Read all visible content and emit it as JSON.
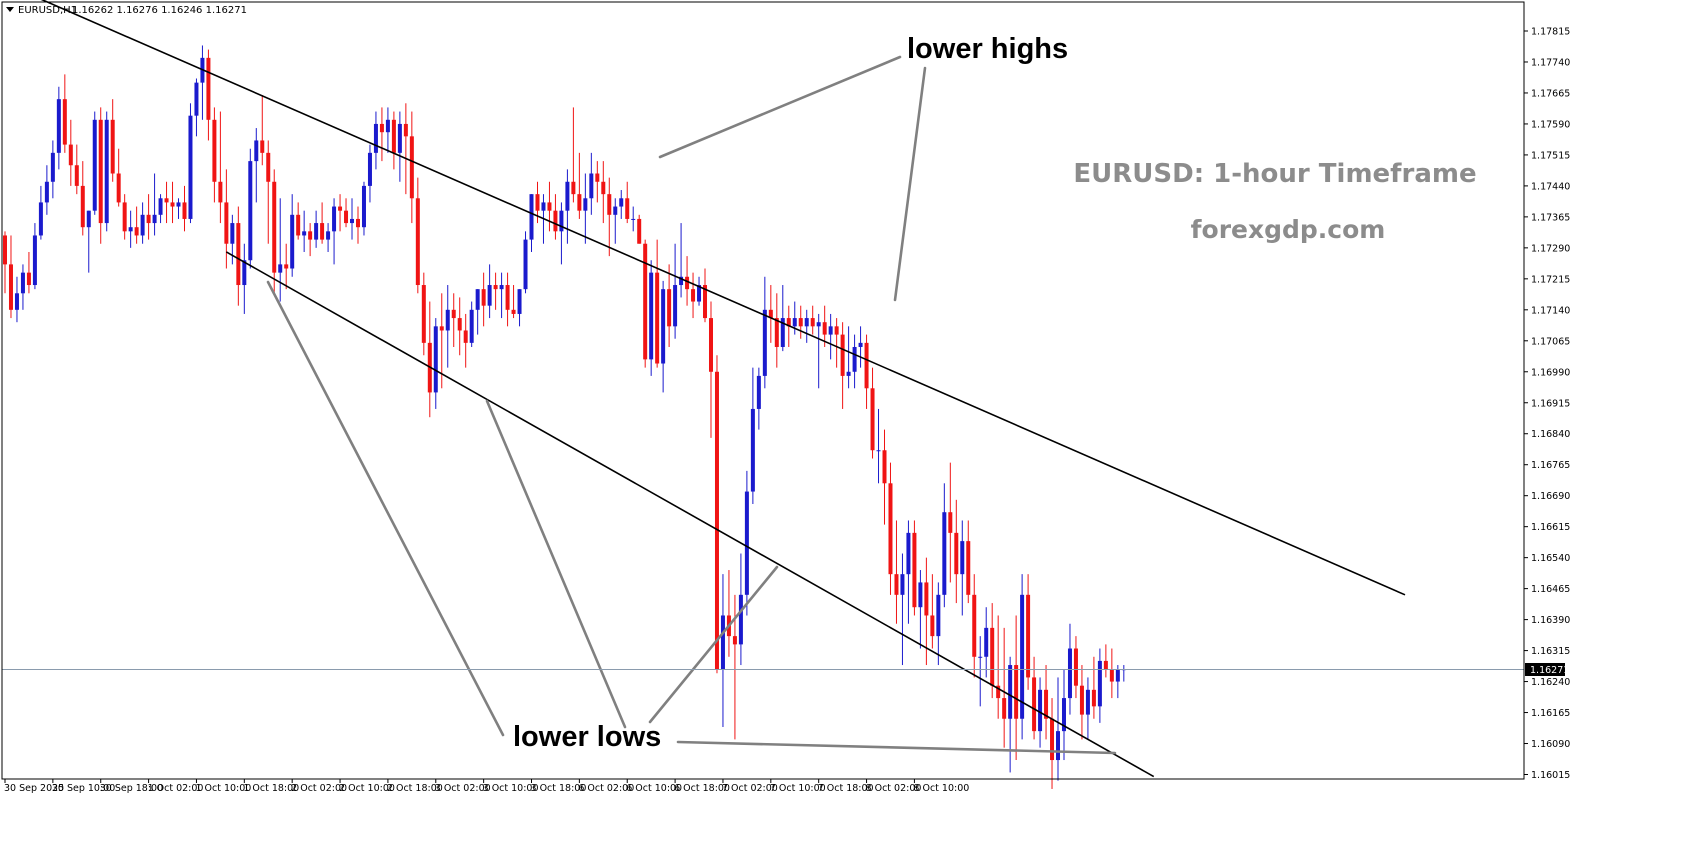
{
  "header": {
    "symbol_label": "EURUSD,H1",
    "ohlc_text": "1.16262 1.16276 1.16246 1.16271"
  },
  "watermark": {
    "title": "EURUSD: 1-hour Timeframe",
    "site": "forexgdp.com"
  },
  "annotations": {
    "lower_highs": "lower highs",
    "lower_lows": "lower lows"
  },
  "colors": {
    "bull": "#1a1acd",
    "bear": "#f01414",
    "channel": "#000000",
    "annotation_line": "#808080",
    "current_price_line": "#8a9bad",
    "price_tag_bg": "#000000"
  },
  "chart_data": {
    "type": "candlestick",
    "symbol": "EURUSD",
    "timeframe": "H1",
    "current_price": 1.16271,
    "current_price_label": "1.16271",
    "ylim": [
      1.1599,
      1.1785
    ],
    "y_ticks": [
      "1.17815",
      "1.17740",
      "1.17665",
      "1.17590",
      "1.17515",
      "1.17440",
      "1.17365",
      "1.17290",
      "1.17215",
      "1.17140",
      "1.17065",
      "1.16990",
      "1.16915",
      "1.16840",
      "1.16765",
      "1.16690",
      "1.16615",
      "1.16540",
      "1.16465",
      "1.16390",
      "1.16315",
      "1.16240",
      "1.16165",
      "1.16090",
      "1.16015"
    ],
    "x_ticks": [
      "30 Sep 2025",
      "30 Sep 10:00",
      "30 Sep 18:00",
      "1 Oct 02:00",
      "1 Oct 10:00",
      "1 Oct 18:00",
      "2 Oct 02:00",
      "2 Oct 10:00",
      "2 Oct 18:00",
      "3 Oct 02:00",
      "3 Oct 10:00",
      "3 Oct 18:00",
      "6 Oct 02:00",
      "6 Oct 10:00",
      "6 Oct 18:00",
      "7 Oct 02:00",
      "7 Oct 10:00",
      "7 Oct 18:00",
      "8 Oct 02:00",
      "8 Oct 10:00"
    ],
    "x_tick_spacing_bars": 8,
    "channel": {
      "upper": [
        [
          0,
          1.1793
        ],
        [
          234,
          1.1645
        ]
      ],
      "lower": [
        [
          37,
          1.1728
        ],
        [
          192,
          1.1601
        ]
      ]
    },
    "candles": [
      [
        1.1732,
        1.1733,
        1.1718,
        1.1725
      ],
      [
        1.1725,
        1.1732,
        1.1712,
        1.1714
      ],
      [
        1.1714,
        1.1722,
        1.1711,
        1.1718
      ],
      [
        1.1718,
        1.1725,
        1.1714,
        1.1723
      ],
      [
        1.1723,
        1.1728,
        1.1718,
        1.172
      ],
      [
        1.172,
        1.1735,
        1.1719,
        1.1732
      ],
      [
        1.1732,
        1.1744,
        1.1731,
        1.174
      ],
      [
        1.174,
        1.1749,
        1.1737,
        1.1745
      ],
      [
        1.1745,
        1.1755,
        1.1741,
        1.1752
      ],
      [
        1.1752,
        1.1768,
        1.1748,
        1.1765
      ],
      [
        1.1765,
        1.1771,
        1.1752,
        1.1754
      ],
      [
        1.1754,
        1.176,
        1.1744,
        1.1749
      ],
      [
        1.1749,
        1.1754,
        1.1742,
        1.1744
      ],
      [
        1.1744,
        1.175,
        1.1732,
        1.1734
      ],
      [
        1.1734,
        1.1738,
        1.1723,
        1.1738
      ],
      [
        1.1738,
        1.1762,
        1.1737,
        1.176
      ],
      [
        1.176,
        1.1763,
        1.173,
        1.1735
      ],
      [
        1.1735,
        1.1762,
        1.1733,
        1.176
      ],
      [
        1.176,
        1.1765,
        1.1745,
        1.1747
      ],
      [
        1.1747,
        1.1753,
        1.1739,
        1.174
      ],
      [
        1.174,
        1.1742,
        1.1731,
        1.1733
      ],
      [
        1.1733,
        1.1738,
        1.1729,
        1.1734
      ],
      [
        1.1734,
        1.1739,
        1.173,
        1.1732
      ],
      [
        1.1732,
        1.174,
        1.173,
        1.1737
      ],
      [
        1.1737,
        1.1742,
        1.1731,
        1.1735
      ],
      [
        1.1735,
        1.1747,
        1.1732,
        1.1737
      ],
      [
        1.1737,
        1.1742,
        1.1735,
        1.1741
      ],
      [
        1.1741,
        1.1745,
        1.1735,
        1.174
      ],
      [
        1.174,
        1.1745,
        1.1735,
        1.1739
      ],
      [
        1.1739,
        1.1741,
        1.1736,
        1.174
      ],
      [
        1.174,
        1.1744,
        1.1733,
        1.1736
      ],
      [
        1.1736,
        1.1764,
        1.1735,
        1.1761
      ],
      [
        1.1761,
        1.177,
        1.1756,
        1.1769
      ],
      [
        1.1769,
        1.1778,
        1.176,
        1.1775
      ],
      [
        1.1775,
        1.1777,
        1.1755,
        1.176
      ],
      [
        1.176,
        1.1763,
        1.174,
        1.1745
      ],
      [
        1.1745,
        1.1762,
        1.1735,
        1.174
      ],
      [
        1.174,
        1.1748,
        1.1724,
        1.173
      ],
      [
        1.173,
        1.1737,
        1.1725,
        1.1735
      ],
      [
        1.1735,
        1.1739,
        1.1715,
        1.172
      ],
      [
        1.172,
        1.173,
        1.1713,
        1.1726
      ],
      [
        1.1726,
        1.1753,
        1.1724,
        1.175
      ],
      [
        1.175,
        1.1758,
        1.174,
        1.1755
      ],
      [
        1.1755,
        1.1766,
        1.1749,
        1.1752
      ],
      [
        1.1752,
        1.1755,
        1.173,
        1.1745
      ],
      [
        1.1745,
        1.1748,
        1.1718,
        1.1723
      ],
      [
        1.1723,
        1.1741,
        1.1716,
        1.1725
      ],
      [
        1.1725,
        1.173,
        1.1719,
        1.1724
      ],
      [
        1.1724,
        1.1742,
        1.1722,
        1.1737
      ],
      [
        1.1737,
        1.174,
        1.1731,
        1.1732
      ],
      [
        1.1732,
        1.1738,
        1.1728,
        1.1733
      ],
      [
        1.1733,
        1.1735,
        1.1727,
        1.1731
      ],
      [
        1.1731,
        1.1738,
        1.1729,
        1.1735
      ],
      [
        1.1735,
        1.174,
        1.173,
        1.1731
      ],
      [
        1.1731,
        1.1735,
        1.1728,
        1.1733
      ],
      [
        1.1733,
        1.1741,
        1.1725,
        1.1739
      ],
      [
        1.1739,
        1.1742,
        1.1733,
        1.1738
      ],
      [
        1.1738,
        1.1741,
        1.1734,
        1.1735
      ],
      [
        1.1735,
        1.1741,
        1.1731,
        1.1736
      ],
      [
        1.1736,
        1.1739,
        1.173,
        1.1734
      ],
      [
        1.1734,
        1.1745,
        1.1732,
        1.1744
      ],
      [
        1.1744,
        1.1754,
        1.174,
        1.1752
      ],
      [
        1.1752,
        1.1762,
        1.1748,
        1.1759
      ],
      [
        1.1759,
        1.1763,
        1.175,
        1.1757
      ],
      [
        1.1757,
        1.1763,
        1.1752,
        1.176
      ],
      [
        1.176,
        1.1762,
        1.1748,
        1.1752
      ],
      [
        1.1752,
        1.1762,
        1.1745,
        1.1759
      ],
      [
        1.1759,
        1.1764,
        1.1742,
        1.1756
      ],
      [
        1.1756,
        1.1762,
        1.1735,
        1.1741
      ],
      [
        1.1741,
        1.1746,
        1.1718,
        1.172
      ],
      [
        1.172,
        1.1723,
        1.1703,
        1.1706
      ],
      [
        1.1706,
        1.1716,
        1.1688,
        1.1694
      ],
      [
        1.1694,
        1.1712,
        1.169,
        1.171
      ],
      [
        1.171,
        1.1718,
        1.1695,
        1.1709
      ],
      [
        1.1709,
        1.172,
        1.17,
        1.1714
      ],
      [
        1.1714,
        1.1718,
        1.1705,
        1.1712
      ],
      [
        1.1712,
        1.1717,
        1.1703,
        1.1709
      ],
      [
        1.1709,
        1.1713,
        1.17,
        1.1706
      ],
      [
        1.1706,
        1.1716,
        1.1705,
        1.1714
      ],
      [
        1.1714,
        1.1719,
        1.1708,
        1.1719
      ],
      [
        1.1719,
        1.1723,
        1.171,
        1.1715
      ],
      [
        1.1715,
        1.1725,
        1.1712,
        1.172
      ],
      [
        1.172,
        1.1723,
        1.1714,
        1.1719
      ],
      [
        1.1719,
        1.1723,
        1.1712,
        1.172
      ],
      [
        1.172,
        1.1723,
        1.171,
        1.1714
      ],
      [
        1.1714,
        1.172,
        1.1712,
        1.1713
      ],
      [
        1.1713,
        1.1719,
        1.171,
        1.1719
      ],
      [
        1.1719,
        1.1733,
        1.1718,
        1.1731
      ],
      [
        1.1731,
        1.1742,
        1.1728,
        1.1742
      ],
      [
        1.1742,
        1.1745,
        1.1735,
        1.1738
      ],
      [
        1.1738,
        1.1742,
        1.173,
        1.174
      ],
      [
        1.174,
        1.1745,
        1.1733,
        1.1738
      ],
      [
        1.1738,
        1.1742,
        1.1731,
        1.1733
      ],
      [
        1.1733,
        1.174,
        1.1725,
        1.1738
      ],
      [
        1.1738,
        1.1748,
        1.173,
        1.1745
      ],
      [
        1.1745,
        1.1763,
        1.174,
        1.1742
      ],
      [
        1.1742,
        1.1752,
        1.1736,
        1.1738
      ],
      [
        1.1738,
        1.1747,
        1.173,
        1.1741
      ],
      [
        1.1741,
        1.1752,
        1.1737,
        1.1747
      ],
      [
        1.1747,
        1.175,
        1.174,
        1.1745
      ],
      [
        1.1745,
        1.175,
        1.1735,
        1.1742
      ],
      [
        1.1742,
        1.1746,
        1.1727,
        1.1737
      ],
      [
        1.1737,
        1.1741,
        1.173,
        1.1739
      ],
      [
        1.1739,
        1.1743,
        1.1736,
        1.1741
      ],
      [
        1.1741,
        1.1745,
        1.1735,
        1.1736
      ],
      [
        1.1736,
        1.1739,
        1.1733,
        1.1736
      ],
      [
        1.1736,
        1.1737,
        1.173,
        1.173
      ],
      [
        1.173,
        1.1731,
        1.17,
        1.1702
      ],
      [
        1.1702,
        1.1726,
        1.1698,
        1.1723
      ],
      [
        1.1723,
        1.1731,
        1.17,
        1.1701
      ],
      [
        1.1701,
        1.1721,
        1.1694,
        1.1719
      ],
      [
        1.1719,
        1.1725,
        1.1705,
        1.171
      ],
      [
        1.171,
        1.173,
        1.1707,
        1.172
      ],
      [
        1.172,
        1.1735,
        1.1717,
        1.1722
      ],
      [
        1.1722,
        1.1727,
        1.1715,
        1.1719
      ],
      [
        1.1719,
        1.1723,
        1.1712,
        1.1716
      ],
      [
        1.1716,
        1.1722,
        1.1715,
        1.172
      ],
      [
        1.172,
        1.1724,
        1.1711,
        1.1712
      ],
      [
        1.1712,
        1.1716,
        1.1683,
        1.1699
      ],
      [
        1.1699,
        1.1703,
        1.1626,
        1.1627
      ],
      [
        1.1627,
        1.165,
        1.1613,
        1.164
      ],
      [
        1.164,
        1.1651,
        1.163,
        1.1635
      ],
      [
        1.1635,
        1.1645,
        1.161,
        1.1633
      ],
      [
        1.1633,
        1.1655,
        1.1628,
        1.1645
      ],
      [
        1.1645,
        1.1675,
        1.164,
        1.167
      ],
      [
        1.167,
        1.17,
        1.1667,
        1.169
      ],
      [
        1.169,
        1.17,
        1.1685,
        1.1698
      ],
      [
        1.1698,
        1.1722,
        1.1695,
        1.1714
      ],
      [
        1.1714,
        1.172,
        1.1706,
        1.1712
      ],
      [
        1.1712,
        1.1718,
        1.17,
        1.1705
      ],
      [
        1.1705,
        1.172,
        1.1704,
        1.1712
      ],
      [
        1.1712,
        1.1715,
        1.1705,
        1.171
      ],
      [
        1.171,
        1.1716,
        1.1708,
        1.1712
      ],
      [
        1.1712,
        1.1715,
        1.1707,
        1.171
      ],
      [
        1.171,
        1.1714,
        1.1706,
        1.1712
      ],
      [
        1.1712,
        1.1715,
        1.1708,
        1.171
      ],
      [
        1.171,
        1.1713,
        1.1695,
        1.1711
      ],
      [
        1.1711,
        1.1715,
        1.1705,
        1.1708
      ],
      [
        1.1708,
        1.1713,
        1.1702,
        1.171
      ],
      [
        1.171,
        1.1712,
        1.17,
        1.1708
      ],
      [
        1.1708,
        1.1711,
        1.169,
        1.1698
      ],
      [
        1.1698,
        1.171,
        1.1695,
        1.1699
      ],
      [
        1.1699,
        1.1708,
        1.1695,
        1.1705
      ],
      [
        1.1705,
        1.171,
        1.17,
        1.1706
      ],
      [
        1.1706,
        1.1708,
        1.169,
        1.1695
      ],
      [
        1.1695,
        1.17,
        1.1678,
        1.168
      ],
      [
        1.168,
        1.169,
        1.1672,
        1.168
      ],
      [
        1.168,
        1.1685,
        1.1662,
        1.1672
      ],
      [
        1.1672,
        1.1677,
        1.1645,
        1.165
      ],
      [
        1.165,
        1.1663,
        1.1638,
        1.1645
      ],
      [
        1.1645,
        1.1655,
        1.1628,
        1.165
      ],
      [
        1.165,
        1.1663,
        1.1638,
        1.166
      ],
      [
        1.166,
        1.1663,
        1.164,
        1.1642
      ],
      [
        1.1642,
        1.1651,
        1.1632,
        1.1648
      ],
      [
        1.1648,
        1.1654,
        1.1628,
        1.164
      ],
      [
        1.164,
        1.165,
        1.1632,
        1.1635
      ],
      [
        1.1635,
        1.1648,
        1.1628,
        1.1645
      ],
      [
        1.1645,
        1.1672,
        1.1642,
        1.1665
      ],
      [
        1.1665,
        1.1677,
        1.1648,
        1.166
      ],
      [
        1.166,
        1.1668,
        1.1643,
        1.165
      ],
      [
        1.165,
        1.1663,
        1.164,
        1.1658
      ],
      [
        1.1658,
        1.1663,
        1.1643,
        1.1645
      ],
      [
        1.1645,
        1.165,
        1.1625,
        1.163
      ],
      [
        1.163,
        1.1635,
        1.1618,
        1.163
      ],
      [
        1.163,
        1.1642,
        1.1625,
        1.1637
      ],
      [
        1.1637,
        1.1643,
        1.162,
        1.1623
      ],
      [
        1.1623,
        1.164,
        1.1615,
        1.162
      ],
      [
        1.162,
        1.1637,
        1.1608,
        1.1615
      ],
      [
        1.1615,
        1.163,
        1.1602,
        1.1628
      ],
      [
        1.1628,
        1.164,
        1.1605,
        1.1615
      ],
      [
        1.1615,
        1.165,
        1.161,
        1.1645
      ],
      [
        1.1645,
        1.165,
        1.1622,
        1.1625
      ],
      [
        1.1625,
        1.163,
        1.161,
        1.1612
      ],
      [
        1.1612,
        1.1625,
        1.1608,
        1.1622
      ],
      [
        1.1622,
        1.1628,
        1.161,
        1.1615
      ],
      [
        1.1615,
        1.162,
        1.1598,
        1.1605
      ],
      [
        1.1605,
        1.1625,
        1.16,
        1.1612
      ],
      [
        1.1612,
        1.1627,
        1.1605,
        1.162
      ],
      [
        1.162,
        1.1638,
        1.1616,
        1.1632
      ],
      [
        1.1632,
        1.1635,
        1.162,
        1.1623
      ],
      [
        1.1623,
        1.1628,
        1.161,
        1.1616
      ],
      [
        1.1616,
        1.1625,
        1.161,
        1.1622
      ],
      [
        1.1622,
        1.163,
        1.1615,
        1.1618
      ],
      [
        1.1618,
        1.1632,
        1.1614,
        1.1629
      ],
      [
        1.1629,
        1.1633,
        1.1625,
        1.1627
      ],
      [
        1.1627,
        1.1632,
        1.162,
        1.1624
      ],
      [
        1.1624,
        1.1628,
        1.162,
        1.1627
      ],
      [
        1.1627,
        1.1628,
        1.1624,
        1.1627
      ]
    ]
  }
}
